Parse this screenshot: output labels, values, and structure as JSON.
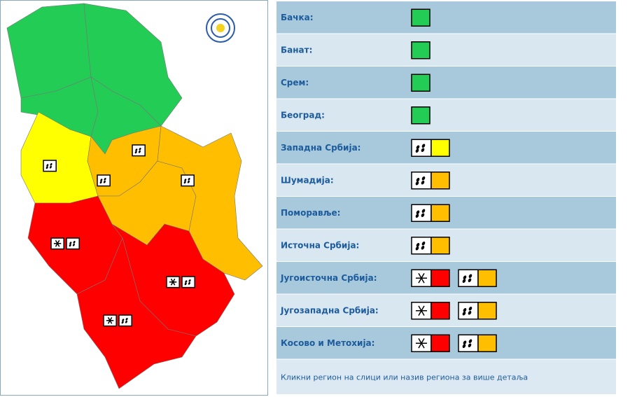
{
  "regions": [
    {
      "name": "Бачка:",
      "warnings": [
        {
          "icon": null,
          "color": "#22cc55"
        }
      ]
    },
    {
      "name": "Банат:",
      "warnings": [
        {
          "icon": null,
          "color": "#22cc55"
        }
      ]
    },
    {
      "name": "Срем:",
      "warnings": [
        {
          "icon": null,
          "color": "#22cc55"
        }
      ]
    },
    {
      "name": "Београд:",
      "warnings": [
        {
          "icon": null,
          "color": "#22cc55"
        }
      ]
    },
    {
      "name": "Западна Србија:",
      "warnings": [
        {
          "icon": "rain",
          "color": "#ffff00"
        }
      ]
    },
    {
      "name": "Шумадија:",
      "warnings": [
        {
          "icon": "rain",
          "color": "#ffbf00"
        }
      ]
    },
    {
      "name": "Поморавље:",
      "warnings": [
        {
          "icon": "rain",
          "color": "#ffbf00"
        }
      ]
    },
    {
      "name": "Источна Србија:",
      "warnings": [
        {
          "icon": "rain",
          "color": "#ffbf00"
        }
      ]
    },
    {
      "name": "Југоисточна Србија:",
      "warnings": [
        {
          "icon": "snow",
          "color": "#ff0000"
        },
        {
          "icon": "rain",
          "color": "#ffbf00"
        }
      ]
    },
    {
      "name": "Југозападна Србија:",
      "warnings": [
        {
          "icon": "snow",
          "color": "#ff0000"
        },
        {
          "icon": "rain",
          "color": "#ffbf00"
        }
      ]
    },
    {
      "name": "Косово и Метохија:",
      "warnings": [
        {
          "icon": "snow",
          "color": "#ff0000"
        },
        {
          "icon": "rain",
          "color": "#ffbf00"
        }
      ]
    }
  ],
  "footer": "Кликни регион на слици или назив региона за више детаља"
}
